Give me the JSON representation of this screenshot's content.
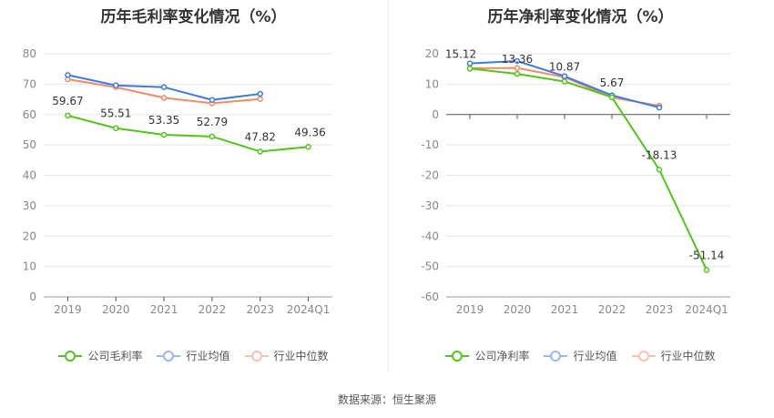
{
  "footer": {
    "source": "数据来源：恒生聚源"
  },
  "chart_data": [
    {
      "type": "line",
      "title": "历年毛利率变化情况（%）",
      "categories": [
        "2019",
        "2020",
        "2021",
        "2022",
        "2023",
        "2024Q1"
      ],
      "ylim": [
        0,
        80
      ],
      "yticks": [
        0,
        10,
        20,
        30,
        40,
        50,
        60,
        70,
        80
      ],
      "grid": true,
      "legend_position": "bottom",
      "series": [
        {
          "name": "公司毛利率",
          "color": "#52c41a",
          "values": [
            59.67,
            55.51,
            53.35,
            52.79,
            47.82,
            49.36
          ],
          "labels": [
            "59.67",
            "55.51",
            "53.35",
            "52.79",
            "47.82",
            "49.36"
          ]
        },
        {
          "name": "行业均值",
          "color": "#3d7be0",
          "values": [
            73.0,
            69.6,
            69.0,
            64.8,
            66.8,
            null
          ]
        },
        {
          "name": "行业中位数",
          "color": "#f08c68",
          "values": [
            71.6,
            69.0,
            65.5,
            63.7,
            65.1,
            null
          ]
        }
      ]
    },
    {
      "type": "line",
      "title": "历年净利率变化情况（%）",
      "categories": [
        "2019",
        "2020",
        "2021",
        "2022",
        "2023",
        "2024Q1"
      ],
      "ylim": [
        -60,
        20
      ],
      "yticks": [
        -60,
        -50,
        -40,
        -30,
        -20,
        -10,
        0,
        10,
        20
      ],
      "grid": true,
      "legend_position": "bottom",
      "series": [
        {
          "name": "公司净利率",
          "color": "#52c41a",
          "values": [
            15.12,
            13.36,
            10.87,
            5.67,
            -18.13,
            -51.14
          ],
          "labels": [
            "15.12",
            "13.36",
            "10.87",
            "5.67",
            "-18.13",
            "-51.14"
          ]
        },
        {
          "name": "行业均值",
          "color": "#3d7be0",
          "values": [
            16.8,
            17.6,
            12.6,
            6.3,
            2.3,
            null
          ]
        },
        {
          "name": "行业中位数",
          "color": "#f08c68",
          "values": [
            15.2,
            15.3,
            12.3,
            5.6,
            2.9,
            null
          ]
        }
      ]
    }
  ]
}
